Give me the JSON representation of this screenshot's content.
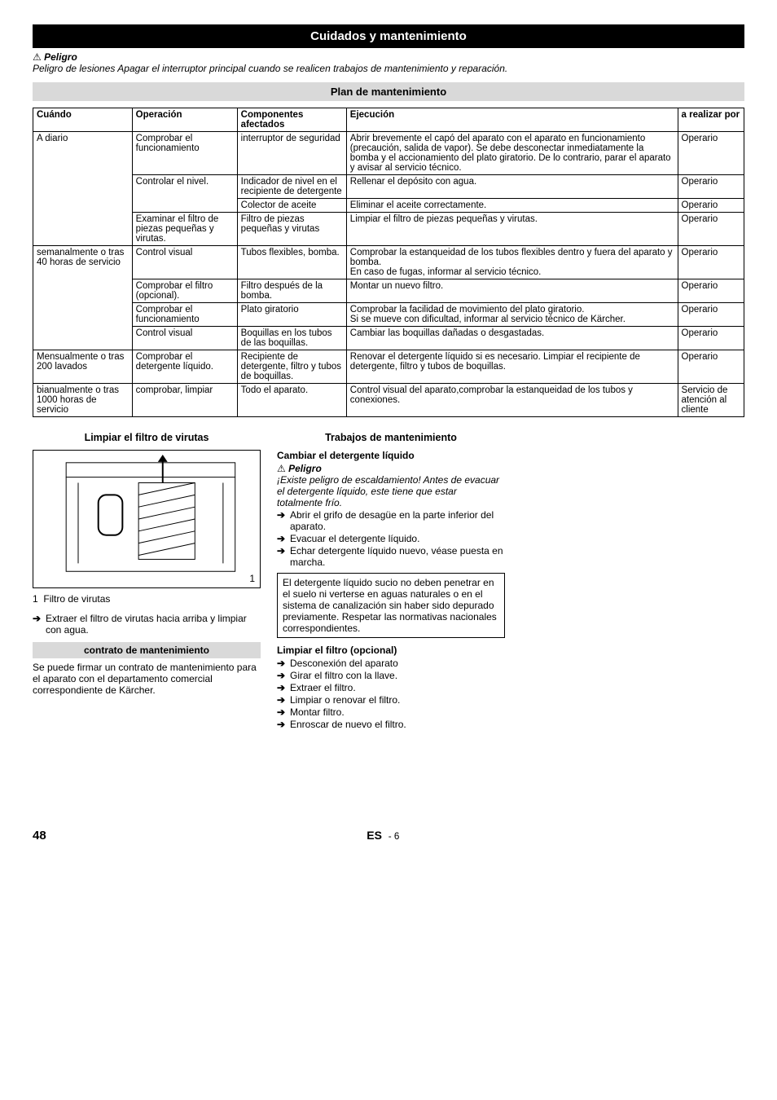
{
  "banner": "Cuidados y mantenimiento",
  "danger_label": "Peligro",
  "danger_text": "Peligro de lesiones Apagar el interruptor principal cuando se realicen trabajos de mantenimiento y reparación.",
  "plan_title": "Plan de mantenimiento",
  "table": {
    "headers": [
      "Cuándo",
      "Operación",
      "Componentes afectados",
      "Ejecución",
      "a realizar por"
    ],
    "groups": [
      {
        "when": "A diario",
        "rows": [
          {
            "op": "Comprobar el funcionamiento",
            "comp": "interruptor de seguridad",
            "exec": "Abrir brevemente el capó del aparato con el aparato en funcionamiento (precaución, salida de vapor). Se debe desconectar inmediatamente la bomba y el accionamiento del plato giratorio. De lo contrario, parar el aparato y avisar al servicio técnico.",
            "by": "Operario"
          },
          {
            "op": "Controlar el nivel.",
            "comp": "Indicador de nivel en el recipiente de detergente",
            "exec": "Rellenar el depósito con agua.",
            "by": "Operario",
            "oprows": 2
          },
          {
            "op": "",
            "comp": "Colector de aceite",
            "exec": "Eliminar el aceite correctamente.",
            "by": "Operario"
          },
          {
            "op": "Examinar el filtro de piezas pequeñas y virutas.",
            "comp": "Filtro de piezas pequeñas y virutas",
            "exec": "Limpiar el filtro de piezas pequeñas y virutas.",
            "by": "Operario"
          }
        ]
      },
      {
        "when": "semanalmente o tras 40 horas de servicio",
        "rows": [
          {
            "op": "Control visual",
            "comp": "Tubos flexibles, bomba.",
            "exec": "Comprobar la estanqueidad de los tubos flexibles dentro y fuera del aparato y bomba.\nEn caso de fugas, informar al servicio técnico.",
            "by": "Operario"
          },
          {
            "op": "Comprobar el filtro (opcional).",
            "comp": "Filtro después de la bomba.",
            "exec": "Montar un nuevo filtro.",
            "by": "Operario"
          },
          {
            "op": "Comprobar el funcionamiento",
            "comp": "Plato giratorio",
            "exec": "Comprobar la facilidad de movimiento del plato giratorio.\nSi se mueve con dificultad, informar al servicio técnico de Kärcher.",
            "by": "Operario"
          },
          {
            "op": "Control visual",
            "comp": "Boquillas en los tubos de las boquillas.",
            "exec": "Cambiar las boquillas dañadas o desgastadas.",
            "by": "Operario"
          }
        ]
      },
      {
        "when": "Mensualmente o tras 200 lavados",
        "rows": [
          {
            "op": "Comprobar el detergente líquido.",
            "comp": "Recipiente de detergente, filtro y tubos de boquillas.",
            "exec": "Renovar el detergente líquido si es necesario. Limpiar el recipiente de detergente, filtro y tubos de boquillas.",
            "by": "Operario"
          }
        ]
      },
      {
        "when": "bianualmente o tras 1000 horas de servicio",
        "rows": [
          {
            "op": "comprobar, limpiar",
            "comp": "Todo el aparato.",
            "exec": "Control visual del aparato,comprobar la estanqueidad de los tubos y conexiones.",
            "by": "Servicio de atención al cliente"
          }
        ]
      }
    ]
  },
  "left": {
    "h": "Limpiar el filtro de virutas",
    "caption_num": "1",
    "caption": "Filtro de virutas",
    "step": "Extraer el filtro de virutas hacia arriba y limpiar con agua.",
    "contract_h": "contrato de mantenimiento",
    "contract_p": "Se puede firmar un contrato de mantenimiento para el aparato con el departamento comercial correspondiente de Kärcher."
  },
  "right": {
    "h": "Trabajos de mantenimiento",
    "sec1_h": "Cambiar el detergente líquido",
    "sec1_warn_label": "Peligro",
    "sec1_warn": "¡Existe peligro de escaldamiento! Antes de evacuar el detergente líquido, este tiene que estar totalmente frío.",
    "sec1_steps": [
      "Abrir el grifo de desagüe en la parte inferior del aparato.",
      "Evacuar el detergente líquido.",
      "Echar detergente líquido nuevo, véase puesta en marcha."
    ],
    "sec1_note": "El detergente líquido sucio no deben penetrar en el suelo ni verterse en aguas naturales o en el sistema de canalización sin haber sido depurado previamente. Respetar las normativas nacionales correspondientes.",
    "sec2_h": "Limpiar el filtro (opcional)",
    "sec2_steps": [
      "Desconexión del aparato",
      "Girar el filtro con la llave.",
      "Extraer el filtro.",
      "Limpiar o renovar el filtro.",
      "Montar filtro.",
      "Enroscar de nuevo el filtro."
    ]
  },
  "footer": {
    "page": "48",
    "lang": "ES",
    "sub": "- 6"
  }
}
